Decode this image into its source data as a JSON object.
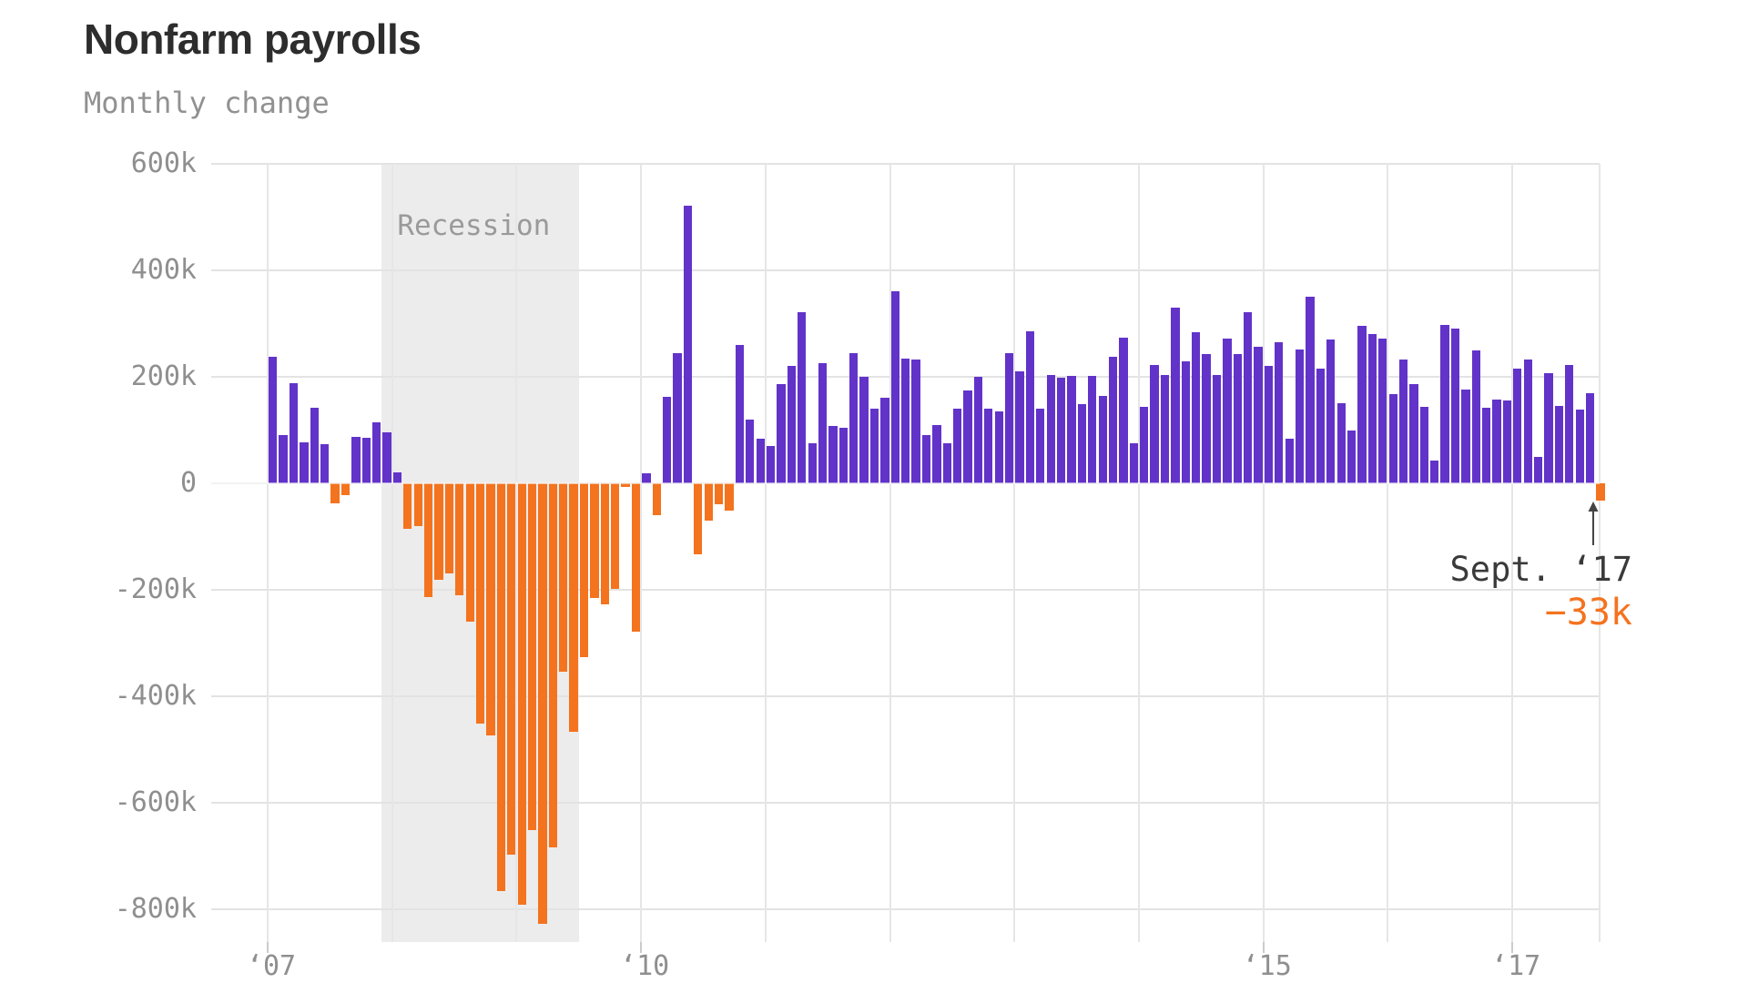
{
  "header": {
    "title": "Nonfarm payrolls",
    "subtitle": "Monthly change"
  },
  "chart_data": {
    "type": "bar",
    "title": "Nonfarm payrolls",
    "subtitle": "Monthly change",
    "unit": "thousands of jobs",
    "start_month": "2007-01",
    "end_month": "2017-09",
    "values": [
      238,
      90,
      188,
      77,
      142,
      73,
      -38,
      -22,
      87,
      86,
      114,
      96,
      20,
      -86,
      -80,
      -213,
      -182,
      -170,
      -210,
      -259,
      -452,
      -474,
      -765,
      -697,
      -791,
      -651,
      -827,
      -684,
      -354,
      -467,
      -327,
      -216,
      -227,
      -198,
      -6,
      -279,
      18,
      -60,
      163,
      244,
      522,
      -133,
      -70,
      -40,
      -52,
      260,
      119,
      84,
      70,
      187,
      220,
      322,
      75,
      225,
      107,
      104,
      245,
      200,
      140,
      160,
      360,
      235,
      232,
      90,
      110,
      76,
      140,
      175,
      200,
      141,
      135,
      245,
      210,
      285,
      141,
      203,
      199,
      201,
      149,
      202,
      164,
      237,
      274,
      75,
      144,
      222,
      203,
      330,
      229,
      284,
      243,
      203,
      271,
      243,
      321,
      256,
      221,
      265,
      84,
      251,
      350,
      215,
      270,
      150,
      100,
      295,
      280,
      271,
      168,
      233,
      186,
      144,
      43,
      297,
      291,
      176,
      249,
      142,
      157,
      155,
      216,
      232,
      50,
      207,
      145,
      222,
      138,
      169,
      -33
    ],
    "ylim": [
      -880,
      600
    ],
    "grid": true,
    "y_ticks": [
      {
        "label": "600k",
        "value": 600
      },
      {
        "label": "400k",
        "value": 400
      },
      {
        "label": "200k",
        "value": 200
      },
      {
        "label": "0",
        "value": 0
      },
      {
        "label": "-200k",
        "value": -200
      },
      {
        "label": "-400k",
        "value": -400
      },
      {
        "label": "-600k",
        "value": -600
      },
      {
        "label": "-800k",
        "value": -800
      }
    ],
    "x_ticks": [
      {
        "label": "‘07",
        "year": 2007
      },
      {
        "label": "‘10",
        "year": 2010
      },
      {
        "label": "‘15",
        "year": 2015
      },
      {
        "label": "‘17",
        "year": 2017
      }
    ],
    "recession_band": {
      "label": "Recession",
      "from": "2007-12",
      "to": "2009-07"
    },
    "annotation": {
      "line1": "Sept. ‘17",
      "line2": "−33k",
      "arrow": "up",
      "target_month": "2017-09",
      "value": -33
    },
    "colors": {
      "positive": "#6233c9",
      "negative": "#f4731f",
      "recession_band": "#ececec",
      "grid": "#e3e3e3",
      "axis_text": "#8f8f8f",
      "annotation_text": "#3a3a3a"
    }
  }
}
